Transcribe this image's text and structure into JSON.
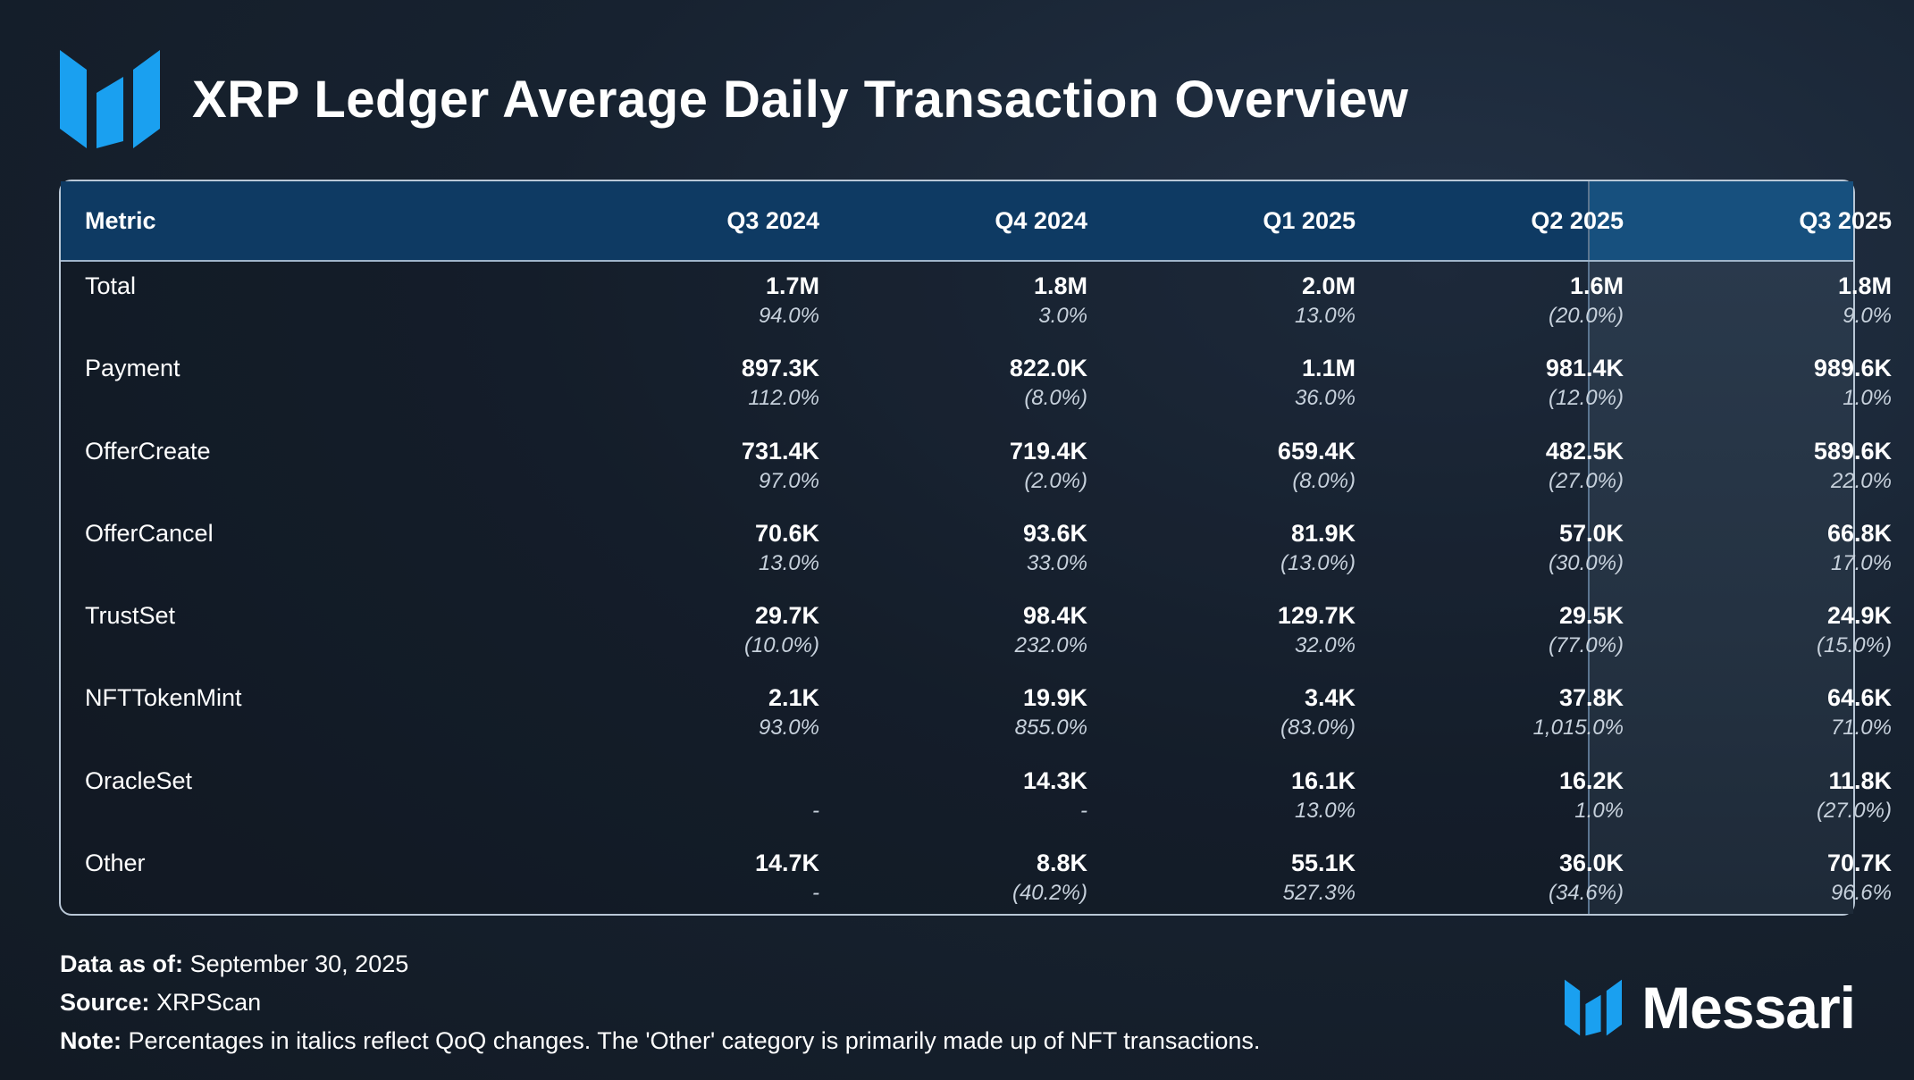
{
  "title": "XRP Ledger Average Daily Transaction Overview",
  "brand": {
    "name": "Messari",
    "logo_icon": "messari-logo-icon",
    "accent": "#1aa0f0"
  },
  "colors": {
    "header_bg": "#0e3a63",
    "header_highlight": "#17507e",
    "border": "#b9c7d6"
  },
  "chart_data": {
    "type": "table",
    "title": "XRP Ledger Average Daily Transaction Overview",
    "header_metric": "Metric",
    "columns": [
      "Q3 2024",
      "Q4 2024",
      "Q1 2025",
      "Q2 2025",
      "Q3 2025"
    ],
    "highlighted_column": "Q3 2025",
    "rows": [
      {
        "metric": "Total",
        "cells": [
          {
            "value": "1.7M",
            "change": "94.0%"
          },
          {
            "value": "1.8M",
            "change": "3.0%"
          },
          {
            "value": "2.0M",
            "change": "13.0%"
          },
          {
            "value": "1.6M",
            "change": "(20.0%)"
          },
          {
            "value": "1.8M",
            "change": "9.0%"
          }
        ]
      },
      {
        "metric": "Payment",
        "cells": [
          {
            "value": "897.3K",
            "change": "112.0%"
          },
          {
            "value": "822.0K",
            "change": "(8.0%)"
          },
          {
            "value": "1.1M",
            "change": "36.0%"
          },
          {
            "value": "981.4K",
            "change": "(12.0%)"
          },
          {
            "value": "989.6K",
            "change": "1.0%"
          }
        ]
      },
      {
        "metric": "OfferCreate",
        "cells": [
          {
            "value": "731.4K",
            "change": "97.0%"
          },
          {
            "value": "719.4K",
            "change": "(2.0%)"
          },
          {
            "value": "659.4K",
            "change": "(8.0%)"
          },
          {
            "value": "482.5K",
            "change": "(27.0%)"
          },
          {
            "value": "589.6K",
            "change": "22.0%"
          }
        ]
      },
      {
        "metric": "OfferCancel",
        "cells": [
          {
            "value": "70.6K",
            "change": "13.0%"
          },
          {
            "value": "93.6K",
            "change": "33.0%"
          },
          {
            "value": "81.9K",
            "change": "(13.0%)"
          },
          {
            "value": "57.0K",
            "change": "(30.0%)"
          },
          {
            "value": "66.8K",
            "change": "17.0%"
          }
        ]
      },
      {
        "metric": "TrustSet",
        "cells": [
          {
            "value": "29.7K",
            "change": "(10.0%)"
          },
          {
            "value": "98.4K",
            "change": "232.0%"
          },
          {
            "value": "129.7K",
            "change": "32.0%"
          },
          {
            "value": "29.5K",
            "change": "(77.0%)"
          },
          {
            "value": "24.9K",
            "change": "(15.0%)"
          }
        ]
      },
      {
        "metric": "NFTTokenMint",
        "cells": [
          {
            "value": "2.1K",
            "change": "93.0%"
          },
          {
            "value": "19.9K",
            "change": "855.0%"
          },
          {
            "value": "3.4K",
            "change": "(83.0%)"
          },
          {
            "value": "37.8K",
            "change": "1,015.0%"
          },
          {
            "value": "64.6K",
            "change": "71.0%"
          }
        ]
      },
      {
        "metric": "OracleSet",
        "cells": [
          {
            "value": "",
            "change": "-"
          },
          {
            "value": "14.3K",
            "change": "-"
          },
          {
            "value": "16.1K",
            "change": "13.0%"
          },
          {
            "value": "16.2K",
            "change": "1.0%"
          },
          {
            "value": "11.8K",
            "change": "(27.0%)"
          }
        ]
      },
      {
        "metric": "Other",
        "cells": [
          {
            "value": "14.7K",
            "change": "-"
          },
          {
            "value": "8.8K",
            "change": "(40.2%)"
          },
          {
            "value": "55.1K",
            "change": "527.3%"
          },
          {
            "value": "36.0K",
            "change": "(34.6%)"
          },
          {
            "value": "70.7K",
            "change": "96.6%"
          }
        ]
      }
    ]
  },
  "footer": {
    "data_as_of_label": "Data as of:",
    "data_as_of_value": "September 30, 2025",
    "source_label": "Source:",
    "source_value": "XRPScan",
    "note_label": "Note:",
    "note_value": "Percentages in italics reflect QoQ changes. The 'Other' category is primarily made up of NFT transactions."
  }
}
